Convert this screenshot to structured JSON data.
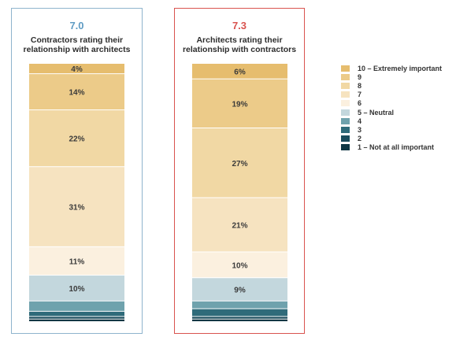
{
  "chart_data": [
    {
      "type": "bar",
      "stacked": true,
      "score": "7.0",
      "title": "Contractors rating their relationship with architects",
      "categories": [
        "10 – Extremely important",
        "9",
        "8",
        "7",
        "6",
        "5 – Neutral",
        "4",
        "3",
        "2",
        "1 – Not at all important"
      ],
      "values": [
        4,
        14,
        22,
        31,
        11,
        10,
        4,
        2,
        1,
        1
      ],
      "labels": [
        "4%",
        "14%",
        "22%",
        "31%",
        "11%",
        "10%",
        "",
        "",
        "",
        ""
      ]
    },
    {
      "type": "bar",
      "stacked": true,
      "score": "7.3",
      "title": "Architects rating their relationship with contractors",
      "categories": [
        "10 – Extremely important",
        "9",
        "8",
        "7",
        "6",
        "5 – Neutral",
        "4",
        "3",
        "2",
        "1 – Not at all important"
      ],
      "values": [
        6,
        19,
        27,
        21,
        10,
        9,
        3,
        3,
        1,
        1
      ],
      "labels": [
        "6%",
        "19%",
        "27%",
        "21%",
        "10%",
        "9%",
        "",
        "",
        "",
        ""
      ]
    }
  ],
  "legend": [
    {
      "label": "10 – Extremely important",
      "color": "#e6bd6e"
    },
    {
      "label": "9",
      "color": "#eccb89"
    },
    {
      "label": "8",
      "color": "#f1d8a4"
    },
    {
      "label": "7",
      "color": "#f6e3c0"
    },
    {
      "label": "6",
      "color": "#fbf0df"
    },
    {
      "label": "5 – Neutral",
      "color": "#c3d7dd"
    },
    {
      "label": "4",
      "color": "#6fa2ad"
    },
    {
      "label": "3",
      "color": "#2f6b7a"
    },
    {
      "label": "2",
      "color": "#1a4c5c"
    },
    {
      "label": "1 – Not at all important",
      "color": "#0f3744"
    }
  ]
}
